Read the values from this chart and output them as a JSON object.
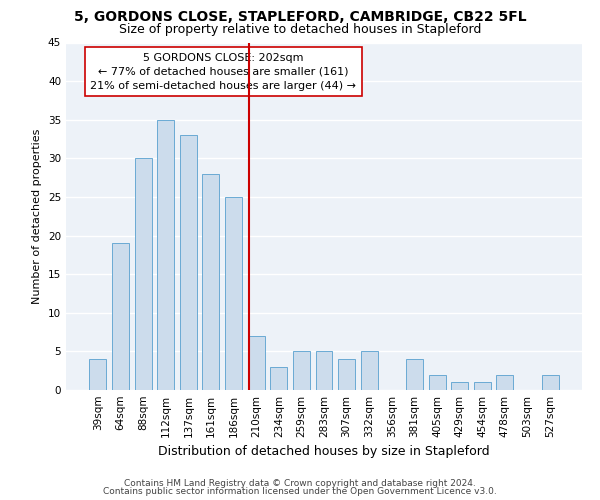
{
  "title": "5, GORDONS CLOSE, STAPLEFORD, CAMBRIDGE, CB22 5FL",
  "subtitle": "Size of property relative to detached houses in Stapleford",
  "xlabel": "Distribution of detached houses by size in Stapleford",
  "ylabel": "Number of detached properties",
  "categories": [
    "39sqm",
    "64sqm",
    "88sqm",
    "112sqm",
    "137sqm",
    "161sqm",
    "186sqm",
    "210sqm",
    "234sqm",
    "259sqm",
    "283sqm",
    "307sqm",
    "332sqm",
    "356sqm",
    "381sqm",
    "405sqm",
    "429sqm",
    "454sqm",
    "478sqm",
    "503sqm",
    "527sqm"
  ],
  "values": [
    4,
    19,
    30,
    35,
    33,
    28,
    25,
    7,
    3,
    5,
    5,
    4,
    5,
    0,
    4,
    2,
    1,
    1,
    2,
    0,
    2
  ],
  "bar_color": "#ccdcec",
  "bar_edge_color": "#6aaad4",
  "vline_color": "#cc0000",
  "box_edge_color": "#cc0000",
  "reference_label": "5 GORDONS CLOSE: 202sqm",
  "annotation_line1": "← 77% of detached houses are smaller (161)",
  "annotation_line2": "21% of semi-detached houses are larger (44) →",
  "ylim": [
    0,
    45
  ],
  "yticks": [
    0,
    5,
    10,
    15,
    20,
    25,
    30,
    35,
    40,
    45
  ],
  "footer_line1": "Contains HM Land Registry data © Crown copyright and database right 2024.",
  "footer_line2": "Contains public sector information licensed under the Open Government Licence v3.0.",
  "bg_color": "#edf2f8",
  "fig_bg_color": "#ffffff",
  "grid_color": "#ffffff",
  "title_fontsize": 10,
  "subtitle_fontsize": 9,
  "xlabel_fontsize": 9,
  "ylabel_fontsize": 8,
  "tick_fontsize": 7.5,
  "annotation_fontsize": 8,
  "footer_fontsize": 6.5,
  "bar_width": 0.75,
  "vline_index": 6.667
}
